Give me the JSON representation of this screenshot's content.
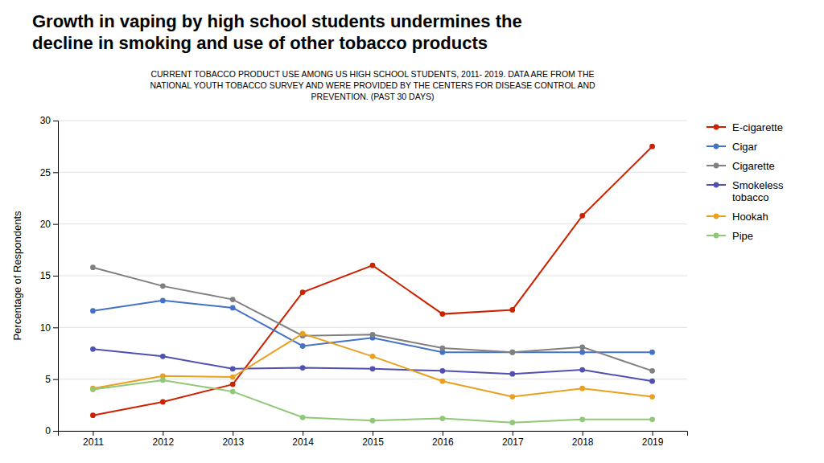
{
  "chart_data": {
    "type": "line",
    "title": "Growth in vaping by high school students undermines the\ndecline in smoking and use of other tobacco products",
    "subtitle": "CURRENT TOBACCO PRODUCT USE AMONG US HIGH SCHOOL STUDENTS, 2011- 2019. DATA ARE FROM THE\nNATIONAL YOUTH TOBACCO SURVEY AND WERE PROVIDED  BY THE CENTERS FOR DISEASE CONTROL AND\nPREVENTION. (PAST 30 DAYS)",
    "ylabel": "Percentage of Respondents",
    "x": [
      2011,
      2012,
      2013,
      2014,
      2015,
      2016,
      2017,
      2018,
      2019
    ],
    "xlim": [
      2010.5,
      2019.5
    ],
    "xticks": [
      2011,
      2012,
      2013,
      2014,
      2015,
      2016,
      2017,
      2018,
      2019
    ],
    "ylim": [
      0,
      30
    ],
    "yticks": [
      0,
      5,
      10,
      15,
      20,
      25,
      30
    ],
    "grid": true,
    "legend": "right",
    "marker": "circle",
    "series": [
      {
        "name": "E-cigarette",
        "color": "#cc2200",
        "values": [
          1.5,
          2.8,
          4.5,
          13.4,
          16.0,
          11.3,
          11.7,
          20.8,
          27.5
        ]
      },
      {
        "name": "Cigar",
        "color": "#4472c4",
        "values": [
          11.6,
          12.6,
          11.9,
          8.2,
          9.0,
          7.6,
          7.6,
          7.6,
          7.6
        ]
      },
      {
        "name": "Cigarette",
        "color": "#808080",
        "values": [
          15.8,
          14.0,
          12.7,
          9.2,
          9.3,
          8.0,
          7.6,
          8.1,
          5.8
        ]
      },
      {
        "name": "Smokeless\ntobacco",
        "color": "#5050b0",
        "values": [
          7.9,
          7.2,
          6.0,
          6.1,
          6.0,
          5.8,
          5.5,
          5.9,
          4.8
        ]
      },
      {
        "name": "Hookah",
        "color": "#e8a020",
        "values": [
          4.1,
          5.3,
          5.2,
          9.4,
          7.2,
          4.8,
          3.3,
          4.1,
          3.3
        ]
      },
      {
        "name": "Pipe",
        "color": "#90c878",
        "values": [
          4.0,
          4.9,
          3.8,
          1.3,
          1.0,
          1.2,
          0.8,
          1.1,
          1.1
        ]
      }
    ]
  }
}
